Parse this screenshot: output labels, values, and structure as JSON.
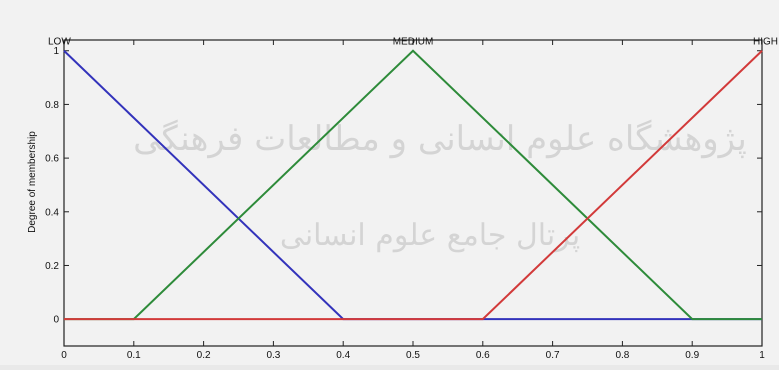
{
  "chart_data": {
    "type": "line",
    "title": "",
    "xlabel": "",
    "ylabel": "Degree of membership",
    "xlim": [
      0,
      1
    ],
    "ylim": [
      -0.1,
      1.04
    ],
    "x_ticks": [
      0,
      0.1,
      0.2,
      0.3,
      0.4,
      0.5,
      0.6,
      0.7,
      0.8,
      0.9,
      1
    ],
    "x_tick_labels": [
      "0",
      "0.1",
      "0.2",
      "0.3",
      "0.4",
      "0.5",
      "0.6",
      "0.7",
      "0.8",
      "0.9",
      "1"
    ],
    "y_ticks": [
      0,
      0.2,
      0.4,
      0.6,
      0.8,
      1
    ],
    "y_tick_labels": [
      "0",
      "0.2",
      "0.4",
      "0.6",
      "0.8",
      "1"
    ],
    "grid": false,
    "series": [
      {
        "name": "LOW",
        "color": "#3333bb",
        "x": [
          0,
          0.4,
          0.9,
          1
        ],
        "y": [
          1,
          0,
          0,
          0
        ],
        "label_anchor": "start"
      },
      {
        "name": "MEDIUM",
        "color": "#2e8b3a",
        "x": [
          0,
          0.1,
          0.5,
          0.9,
          1
        ],
        "y": [
          0,
          0,
          1,
          0,
          0
        ],
        "label_anchor": "middle"
      },
      {
        "name": "HIGH",
        "color": "#d23a3a",
        "x": [
          0,
          0.6,
          1
        ],
        "y": [
          0,
          0,
          1
        ],
        "label_anchor": "end"
      }
    ]
  },
  "watermark": {
    "line1": "پژوهشگاه علوم انسانی و مطالعات فرهنگی",
    "line2": "پرتال جامع علوم انسانی"
  }
}
